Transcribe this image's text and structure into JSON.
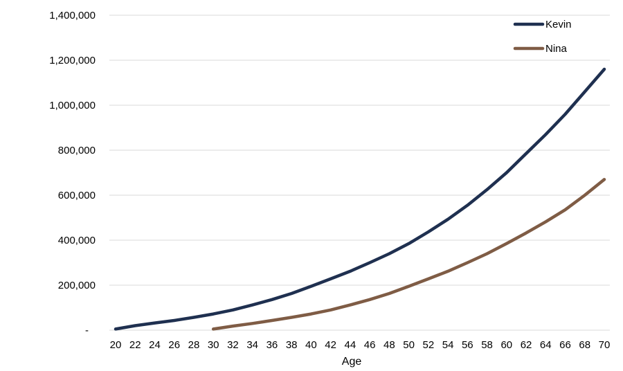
{
  "chart_data": {
    "type": "line",
    "title": "",
    "xlabel": "Age",
    "ylabel": "",
    "xlim": [
      20,
      70
    ],
    "ylim": [
      0,
      1400000
    ],
    "x_ticks": [
      "20",
      "22",
      "24",
      "26",
      "28",
      "30",
      "32",
      "34",
      "36",
      "38",
      "40",
      "42",
      "44",
      "46",
      "48",
      "50",
      "52",
      "54",
      "56",
      "58",
      "60",
      "62",
      "64",
      "66",
      "68",
      "70"
    ],
    "y_ticks": [
      {
        "value": 0,
        "label": "-"
      },
      {
        "value": 200000,
        "label": "200,000"
      },
      {
        "value": 400000,
        "label": "400,000"
      },
      {
        "value": 600000,
        "label": "600,000"
      },
      {
        "value": 800000,
        "label": "800,000"
      },
      {
        "value": 1000000,
        "label": "1,000,000"
      },
      {
        "value": 1200000,
        "label": "1,200,000"
      },
      {
        "value": 1400000,
        "label": "1,400,000"
      }
    ],
    "grid": "horizontal",
    "legend_position": "top-right",
    "series": [
      {
        "name": "Kevin",
        "color": "#1f3050",
        "x": [
          20,
          22,
          24,
          26,
          28,
          30,
          32,
          34,
          36,
          38,
          40,
          42,
          44,
          46,
          48,
          50,
          52,
          54,
          56,
          58,
          60,
          62,
          64,
          66,
          68,
          70
        ],
        "values": [
          5000,
          20000,
          32000,
          43000,
          57000,
          72000,
          90000,
          112000,
          136000,
          163000,
          195000,
          228000,
          262000,
          300000,
          340000,
          385000,
          437000,
          493000,
          555000,
          625000,
          700000,
          785000,
          870000,
          960000,
          1060000,
          1160000
        ]
      },
      {
        "name": "Nina",
        "color": "#7f5c45",
        "x": [
          30,
          32,
          34,
          36,
          38,
          40,
          42,
          44,
          46,
          48,
          50,
          52,
          54,
          56,
          58,
          60,
          62,
          64,
          66,
          68,
          70
        ],
        "values": [
          5000,
          18000,
          30000,
          43000,
          57000,
          72000,
          90000,
          112000,
          136000,
          163000,
          195000,
          228000,
          262000,
          300000,
          340000,
          385000,
          432000,
          482000,
          535000,
          600000,
          670000
        ]
      }
    ]
  }
}
